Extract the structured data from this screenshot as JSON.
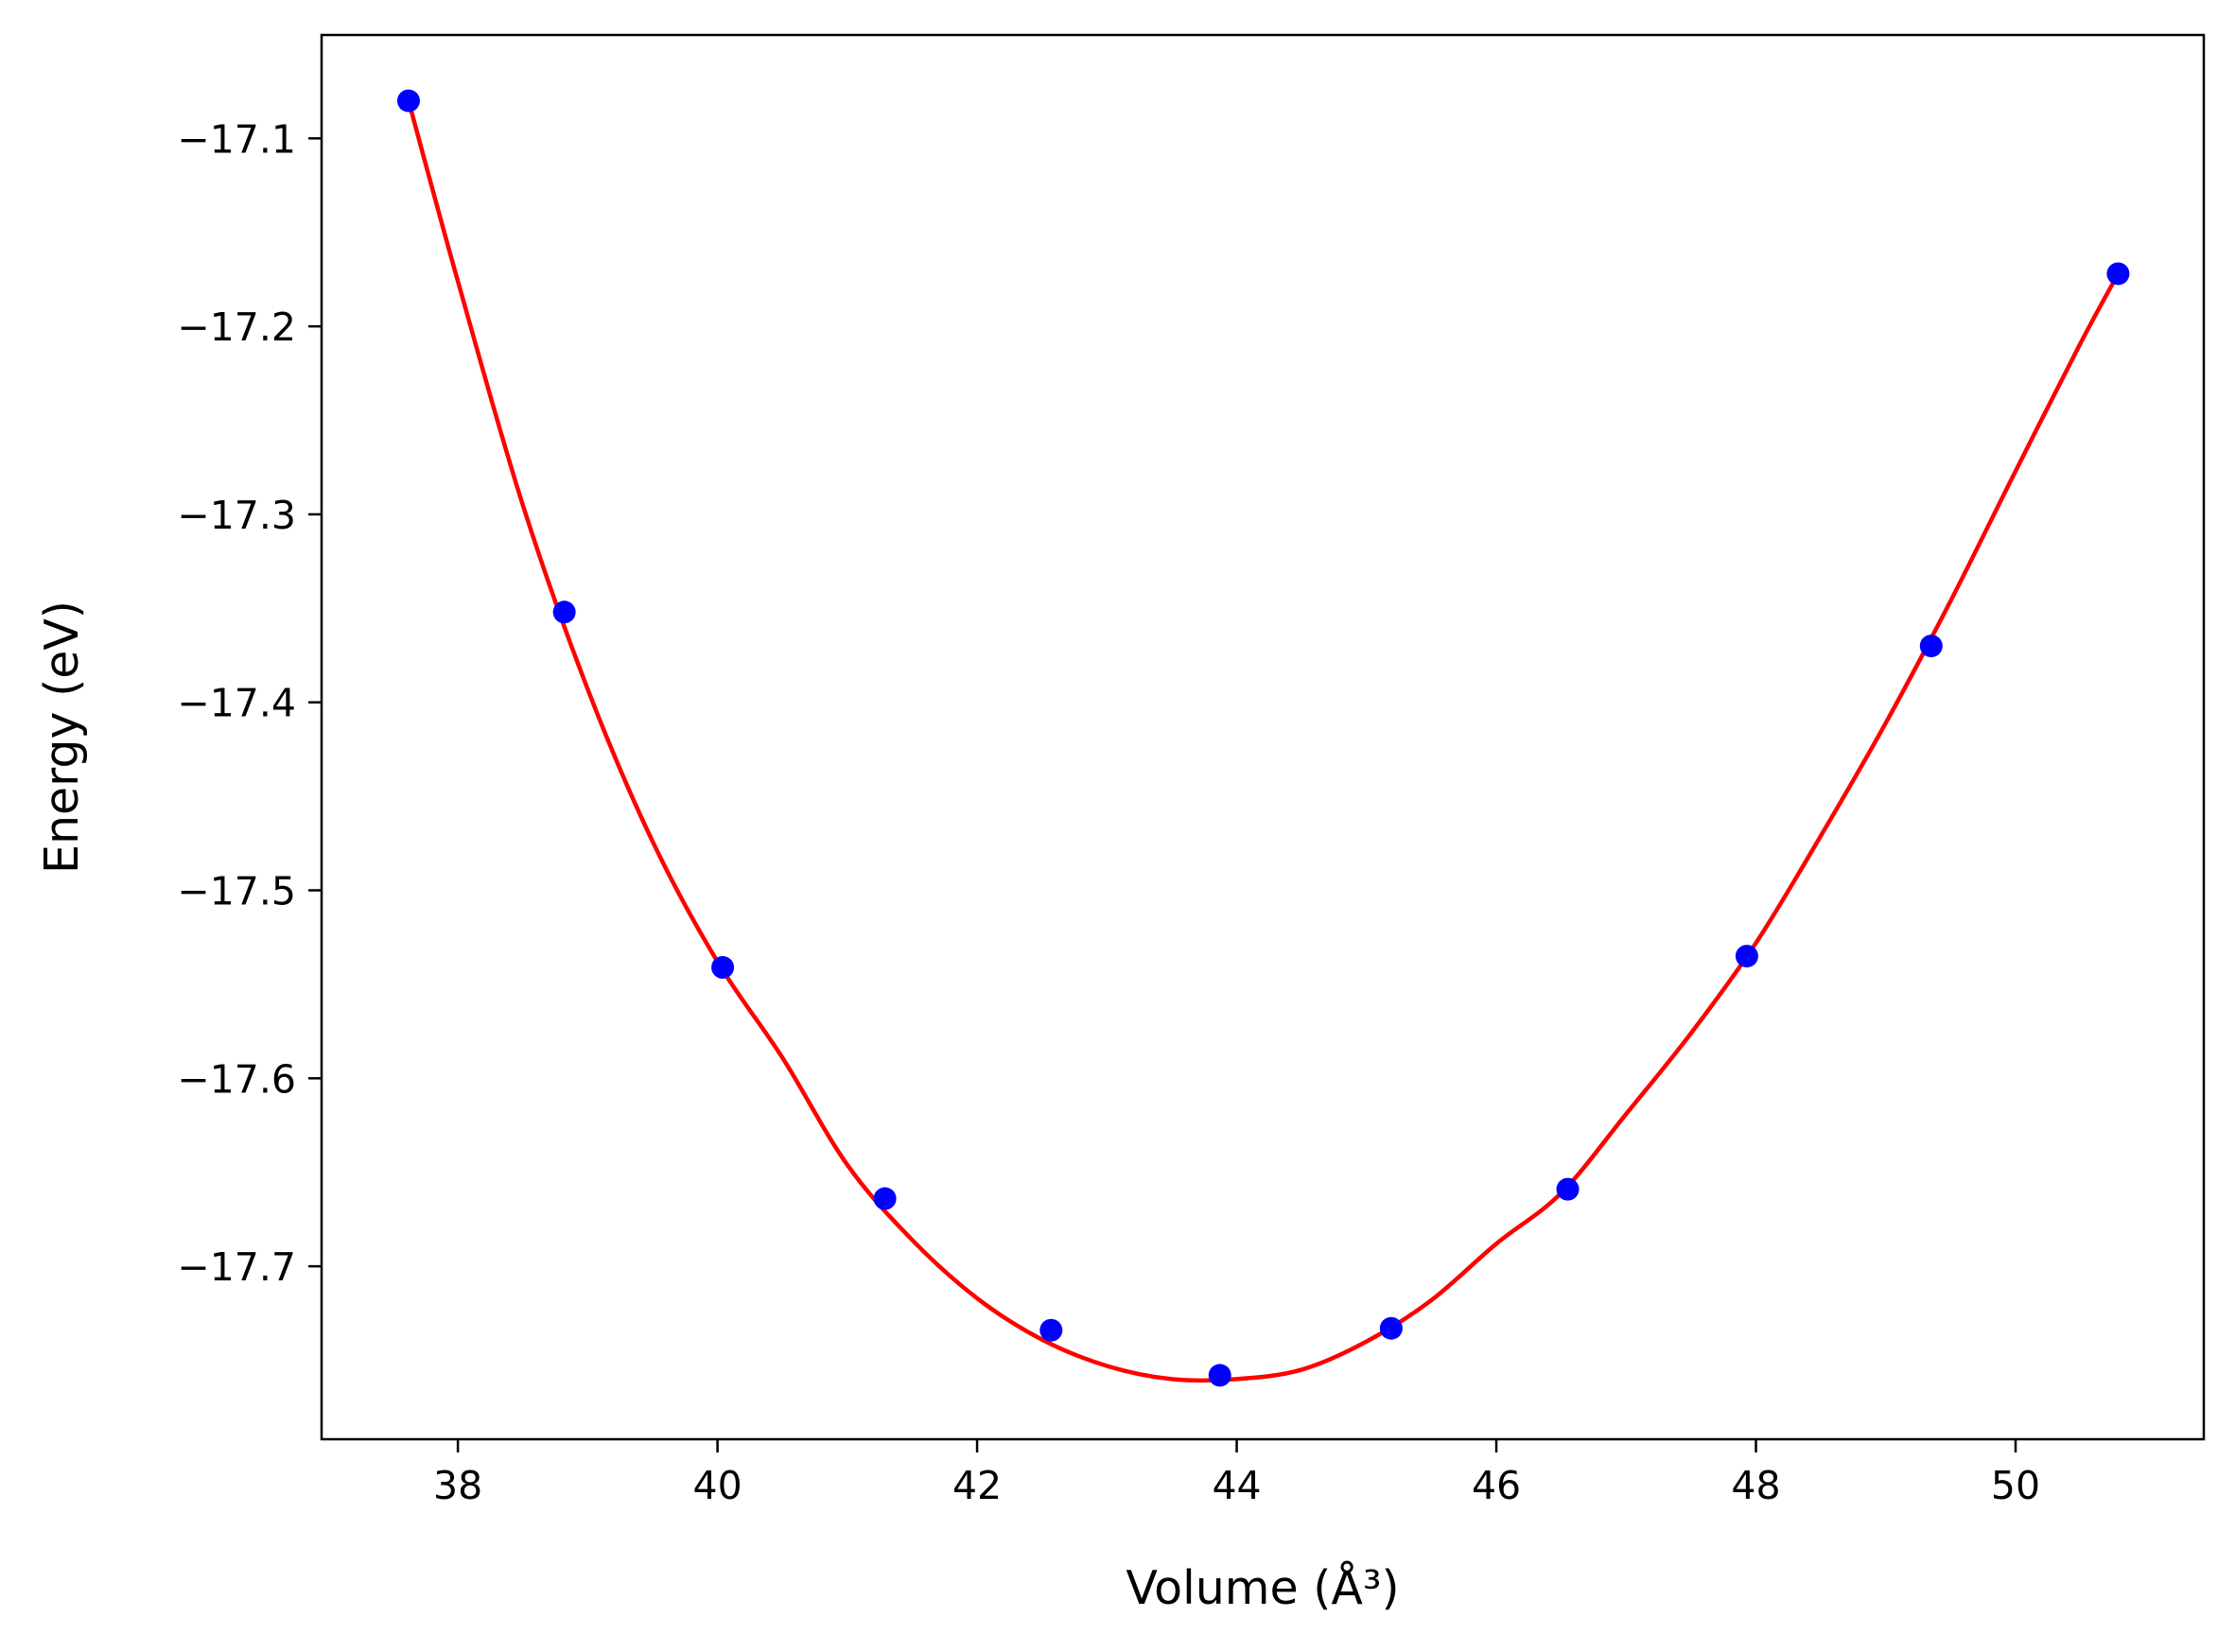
{
  "chart_data": {
    "type": "scatter",
    "title": "",
    "xlabel": "Volume (Å³)",
    "ylabel": "Energy (eV)",
    "xlim": [
      36.95,
      51.45
    ],
    "ylim": [
      -17.792,
      -17.045
    ],
    "xticks": [
      38,
      40,
      42,
      44,
      46,
      48,
      50
    ],
    "xtick_labels": [
      "38",
      "40",
      "42",
      "44",
      "46",
      "48",
      "50"
    ],
    "yticks": [
      -17.1,
      -17.2,
      -17.3,
      -17.4,
      -17.5,
      -17.6,
      -17.7
    ],
    "ytick_labels": [
      "−17.1",
      "−17.2",
      "−17.3",
      "−17.4",
      "−17.5",
      "−17.6",
      "−17.7"
    ],
    "grid": false,
    "legend": false,
    "series": [
      {
        "kind": "points",
        "color": "#0000ff",
        "x": [
          37.62,
          38.82,
          40.04,
          41.29,
          42.57,
          43.87,
          45.19,
          46.55,
          47.93,
          49.35,
          50.79
        ],
        "y": [
          -17.08,
          -17.352,
          -17.541,
          -17.664,
          -17.734,
          -17.758,
          -17.733,
          -17.659,
          -17.535,
          -17.37,
          -17.172
        ]
      },
      {
        "kind": "fit-curve",
        "color": "#ff0000",
        "x": [
          37.62,
          38.0,
          38.5,
          39.0,
          39.5,
          40.0,
          40.5,
          41.0,
          41.5,
          42.0,
          42.5,
          43.0,
          43.5,
          44.0,
          44.5,
          45.0,
          45.5,
          46.0,
          46.5,
          47.0,
          47.5,
          48.0,
          48.5,
          49.0,
          49.5,
          50.0,
          50.5,
          50.79
        ],
        "y": [
          -17.08,
          -17.176,
          -17.295,
          -17.393,
          -17.474,
          -17.538,
          -17.589,
          -17.646,
          -17.686,
          -17.717,
          -17.739,
          -17.753,
          -17.76,
          -17.76,
          -17.755,
          -17.74,
          -17.718,
          -17.688,
          -17.661,
          -17.619,
          -17.576,
          -17.528,
          -17.471,
          -17.411,
          -17.346,
          -17.277,
          -17.209,
          -17.172
        ]
      }
    ]
  }
}
